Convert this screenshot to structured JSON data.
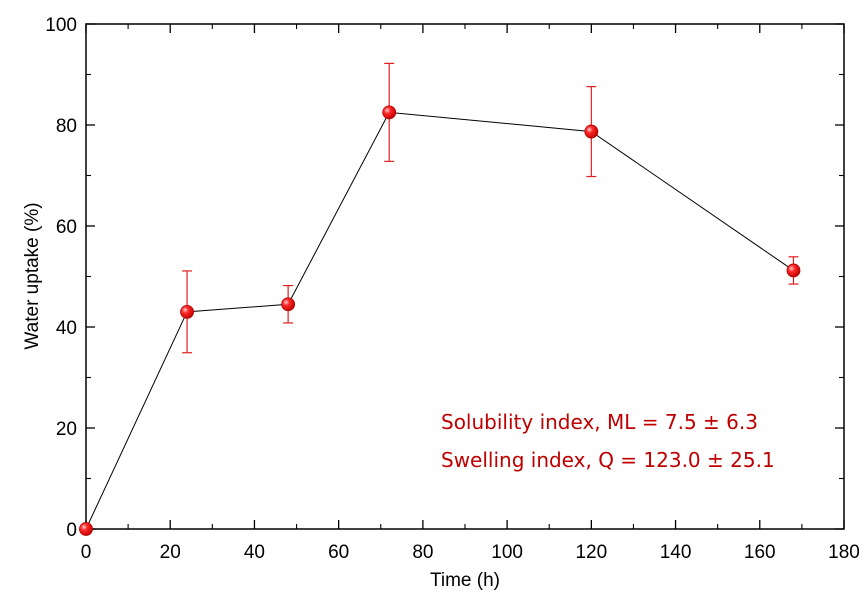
{
  "chart_data": {
    "type": "line",
    "title": "",
    "xlabel": "Time (h)",
    "ylabel": "Water uptake (%)",
    "xlim": [
      0,
      180
    ],
    "ylim": [
      0,
      100
    ],
    "xticks": [
      0,
      20,
      40,
      60,
      80,
      100,
      120,
      140,
      160,
      180
    ],
    "yticks": [
      0,
      20,
      40,
      60,
      80,
      100
    ],
    "grid": false,
    "legend": "none",
    "series": [
      {
        "x": [
          0,
          24,
          48,
          72,
          120,
          168
        ],
        "y": [
          0,
          43,
          44.5,
          82.5,
          78.7,
          51.2
        ],
        "error": [
          0,
          8.1,
          3.7,
          9.7,
          8.9,
          2.7
        ],
        "marker_color": "#e8151b",
        "errorbar_color": "#e02020",
        "line_color": "#000000"
      }
    ],
    "annotations": [
      "Solubility index, ML = 7.5 ± 6.3",
      "Swelling index, Q = 123.0 ± 25.1"
    ],
    "annotation_color": "#c00000"
  }
}
